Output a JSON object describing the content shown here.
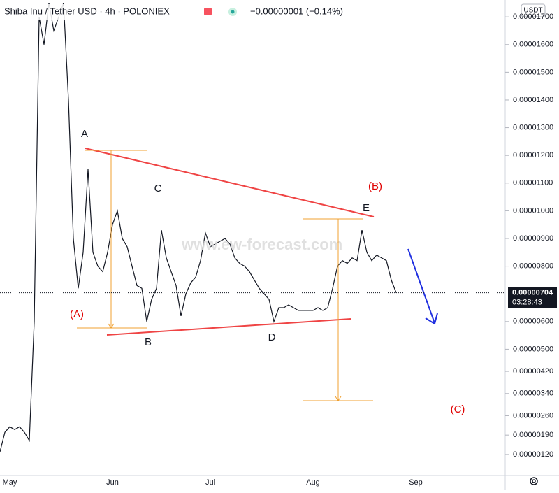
{
  "chart_data": {
    "type": "line",
    "title": "Shiba Inu / Tether USD · 4h · POLONIEX",
    "change": "−0.00000001 (−0.14%)",
    "currency": "USDT",
    "last_price_label": "0.00000704",
    "countdown": "03:28:43",
    "watermark": "www.ew-forecast.com",
    "color": "#131722",
    "categories": [
      null,
      null,
      "May",
      null,
      null,
      null,
      null,
      null,
      null,
      null,
      null,
      null,
      null,
      null,
      null,
      null,
      null,
      null,
      null,
      null,
      null,
      null,
      null,
      "Jun",
      null,
      null,
      null,
      null,
      null,
      null,
      null,
      null,
      null,
      null,
      null,
      null,
      null,
      null,
      null,
      null,
      null,
      null,
      null,
      "Jul",
      null,
      null,
      null,
      null,
      null,
      null,
      null,
      null,
      null,
      null,
      null,
      null,
      null,
      null,
      null,
      null,
      null,
      null,
      null,
      null,
      "Aug",
      null,
      null,
      null,
      null,
      null,
      null,
      null,
      null,
      null,
      null,
      null,
      null,
      null,
      null,
      null,
      null,
      null,
      null,
      null,
      null,
      "Sep"
    ],
    "values": [
      1.3e-06,
      2e-06,
      2.2e-06,
      2.1e-06,
      2.2e-06,
      2e-06,
      1.7e-06,
      6e-06,
      1.7e-05,
      1.6e-05,
      1.75e-05,
      1.65e-05,
      1.7e-05,
      1.75e-05,
      1.4e-05,
      9e-06,
      7.2e-06,
      8.5e-06,
      1.15e-05,
      8.5e-06,
      8e-06,
      7.8e-06,
      8.5e-06,
      9.5e-06,
      1e-05,
      9e-06,
      8.7e-06,
      8e-06,
      7.3e-06,
      7.2e-06,
      6e-06,
      6.8e-06,
      7.2e-06,
      9.3e-06,
      8.3e-06,
      7.8e-06,
      7.3e-06,
      6.2e-06,
      7e-06,
      7.4e-06,
      7.6e-06,
      8.2e-06,
      9.2e-06,
      8.7e-06,
      8.8e-06,
      8.9e-06,
      9e-06,
      8.8e-06,
      8.3e-06,
      8.1e-06,
      8e-06,
      7.8e-06,
      7.5e-06,
      7.2e-06,
      7e-06,
      6.8e-06,
      6e-06,
      6.5e-06,
      6.5e-06,
      6.6e-06,
      6.5e-06,
      6.4e-06,
      6.4e-06,
      6.4e-06,
      6.4e-06,
      6.5e-06,
      6.4e-06,
      6.5e-06,
      7.2e-06,
      8e-06,
      8.2e-06,
      8.1e-06,
      8.3e-06,
      8.2e-06,
      9.3e-06,
      8.5e-06,
      8.2e-06,
      8.4e-06,
      8.3e-06,
      8.2e-06,
      7.5e-06,
      7.04e-06,
      null,
      null,
      null,
      null
    ],
    "ylim": [
      4.4e-07,
      1.761e-05
    ],
    "yticks": [
      {
        "value": 1.7e-05,
        "label": "0.00001700"
      },
      {
        "value": 1.6e-05,
        "label": "0.00001600"
      },
      {
        "value": 1.5e-05,
        "label": "0.00001500"
      },
      {
        "value": 1.4e-05,
        "label": "0.00001400"
      },
      {
        "value": 1.3e-05,
        "label": "0.00001300"
      },
      {
        "value": 1.2e-05,
        "label": "0.00001200"
      },
      {
        "value": 1.1e-05,
        "label": "0.00001100"
      },
      {
        "value": 1e-05,
        "label": "0.00001000"
      },
      {
        "value": 9e-06,
        "label": "0.00000900"
      },
      {
        "value": 8e-06,
        "label": "0.00000800"
      },
      {
        "value": 6e-06,
        "label": "0.00000600"
      },
      {
        "value": 5e-06,
        "label": "0.00000500"
      },
      {
        "value": 4.2e-06,
        "label": "0.00000420"
      },
      {
        "value": 3.4e-06,
        "label": "0.00000340"
      },
      {
        "value": 2.6e-06,
        "label": "0.00000260"
      },
      {
        "value": 1.9e-06,
        "label": "0.00000190"
      },
      {
        "value": 1.2e-06,
        "label": "0.00000120"
      }
    ],
    "annotations": [
      "A",
      "B",
      "C",
      "D",
      "E",
      "(A)",
      "(B)",
      "(C)"
    ]
  }
}
